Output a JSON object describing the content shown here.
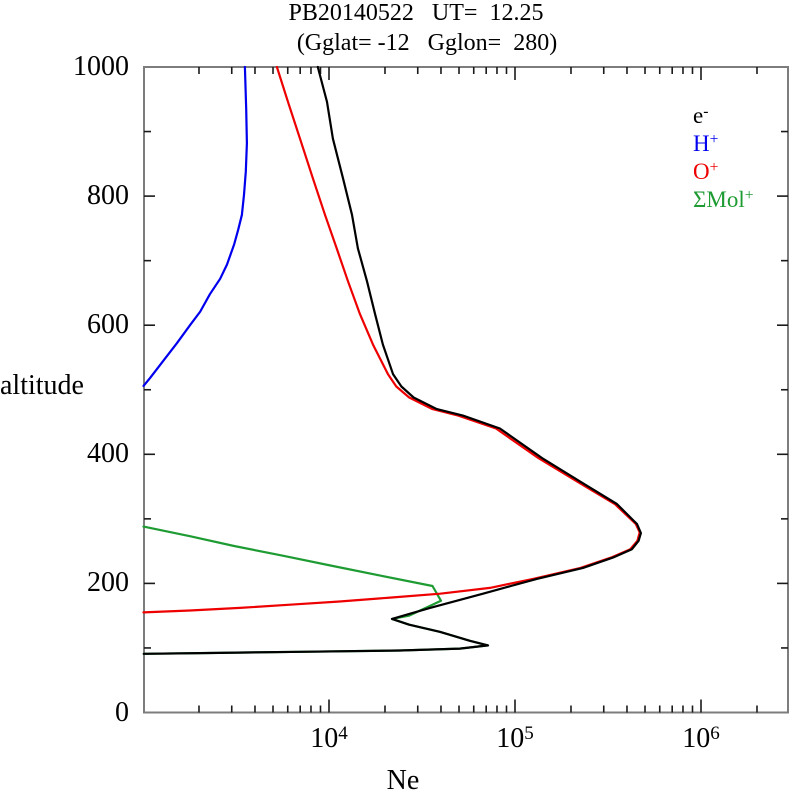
{
  "title": {
    "line1": "PB20140522   UT=  12.25",
    "line2": "(Gglat= -12   Gglon=  280)"
  },
  "axes": {
    "y_label": "altitude",
    "x_label": "Ne",
    "y_major_ticks": [
      {
        "value": 0,
        "label": "0"
      },
      {
        "value": 200,
        "label": "200"
      },
      {
        "value": 400,
        "label": "400"
      },
      {
        "value": 600,
        "label": "600"
      },
      {
        "value": 800,
        "label": "800"
      },
      {
        "value": 1000,
        "label": "1000"
      }
    ],
    "y_minor_ticks": [
      100,
      300,
      500,
      700,
      900
    ],
    "x_major_ticks": [
      {
        "value": 10000,
        "base": "10",
        "exp": "4"
      },
      {
        "value": 100000,
        "base": "10",
        "exp": "5"
      },
      {
        "value": 1000000,
        "base": "10",
        "exp": "6"
      }
    ],
    "x_minor_ticks": [
      2000,
      3000,
      4000,
      5000,
      6000,
      7000,
      8000,
      9000,
      20000,
      30000,
      40000,
      50000,
      60000,
      70000,
      80000,
      90000,
      200000,
      300000,
      400000,
      500000,
      600000,
      700000,
      800000,
      900000,
      2000000
    ]
  },
  "legend": [
    {
      "label": "e",
      "sup": "-",
      "color": "#000000"
    },
    {
      "label": "H",
      "sup": "+",
      "color": "#0000ee"
    },
    {
      "label": "O",
      "sup": "+",
      "color": "#ee0000"
    },
    {
      "label": "ΣMol",
      "sup": "+",
      "color": "#1e9b32"
    }
  ],
  "colors": {
    "frame": "#7d7d7d",
    "ticks": "#1a1a1a",
    "electron": "#000000",
    "h_plus": "#0000ee",
    "o_plus": "#ee0000",
    "mol_plus": "#1e9b32"
  },
  "chart_data": {
    "type": "line",
    "title": "PB20140522   UT=  12.25 (Gglat= -12  Gglon= 280)",
    "xlabel": "Ne",
    "ylabel": "altitude",
    "x_scale": "log",
    "xlim": [
      1000,
      2940000
    ],
    "ylim": [
      0,
      1000
    ],
    "grid": false,
    "legend_position": "upper-right-inside",
    "series": [
      {
        "name": "H+",
        "color": "#0000ee",
        "points_ne_alt": [
          [
            3530,
            1000
          ],
          [
            3590,
            935
          ],
          [
            3620,
            882
          ],
          [
            3570,
            838
          ],
          [
            3490,
            802
          ],
          [
            3400,
            771
          ],
          [
            3250,
            748
          ],
          [
            3090,
            725
          ],
          [
            2830,
            694
          ],
          [
            2600,
            672
          ],
          [
            2290,
            648
          ],
          [
            2030,
            621
          ],
          [
            1790,
            600
          ],
          [
            1520,
            572
          ],
          [
            1280,
            544
          ],
          [
            1090,
            518
          ],
          [
            1000,
            506
          ]
        ]
      },
      {
        "name": "ΣMol+",
        "color": "#1e9b32",
        "points_ne_alt": [
          [
            1000,
            288
          ],
          [
            1800,
            273
          ],
          [
            3090,
            258
          ],
          [
            5600,
            243
          ],
          [
            10500,
            227
          ],
          [
            19000,
            212
          ],
          [
            36000,
            196
          ],
          [
            40000,
            173
          ],
          [
            26900,
            150
          ],
          [
            21800,
            145
          ],
          [
            27000,
            136
          ],
          [
            39400,
            125
          ],
          [
            57200,
            111
          ],
          [
            71600,
            104
          ],
          [
            50500,
            99
          ],
          [
            24100,
            96
          ],
          [
            7000,
            94
          ],
          [
            2030,
            92
          ],
          [
            1010,
            91
          ]
        ]
      },
      {
        "name": "O+",
        "color": "#ee0000",
        "points_ne_alt": [
          [
            5250,
            1000
          ],
          [
            6020,
            946
          ],
          [
            6980,
            889
          ],
          [
            8200,
            827
          ],
          [
            9520,
            771
          ],
          [
            11000,
            719
          ],
          [
            12650,
            668
          ],
          [
            14680,
            617
          ],
          [
            17250,
            570
          ],
          [
            20750,
            524
          ],
          [
            23000,
            505
          ],
          [
            27000,
            488
          ],
          [
            36000,
            470
          ],
          [
            49500,
            460
          ],
          [
            79000,
            440
          ],
          [
            134000,
            394
          ],
          [
            224000,
            355
          ],
          [
            344000,
            323
          ],
          [
            446000,
            292
          ],
          [
            468000,
            279
          ],
          [
            455000,
            266
          ],
          [
            417000,
            253
          ],
          [
            328000,
            240
          ],
          [
            225000,
            224
          ],
          [
            125000,
            207
          ],
          [
            73300,
            193
          ],
          [
            39600,
            184
          ],
          [
            21300,
            178
          ],
          [
            11400,
            172
          ],
          [
            6170,
            167
          ],
          [
            3320,
            162
          ],
          [
            1790,
            158
          ],
          [
            1000,
            155
          ]
        ]
      },
      {
        "name": "e-",
        "color": "#000000",
        "points_ne_alt": [
          [
            8700,
            1000
          ],
          [
            9750,
            946
          ],
          [
            10500,
            889
          ],
          [
            11900,
            827
          ],
          [
            13300,
            771
          ],
          [
            14300,
            719
          ],
          [
            16000,
            668
          ],
          [
            17700,
            617
          ],
          [
            19500,
            570
          ],
          [
            22100,
            524
          ],
          [
            24500,
            505
          ],
          [
            28500,
            488
          ],
          [
            38000,
            470
          ],
          [
            52500,
            460
          ],
          [
            83000,
            440
          ],
          [
            140000,
            394
          ],
          [
            232000,
            355
          ],
          [
            353000,
            323
          ],
          [
            453000,
            292
          ],
          [
            475000,
            278
          ],
          [
            462000,
            266
          ],
          [
            425000,
            253
          ],
          [
            336000,
            240
          ],
          [
            232000,
            224
          ],
          [
            131000,
            207
          ],
          [
            95000,
            196
          ],
          [
            67300,
            184
          ],
          [
            34900,
            162
          ],
          [
            21800,
            145
          ],
          [
            27000,
            136
          ],
          [
            39400,
            125
          ],
          [
            57200,
            111
          ],
          [
            71600,
            104
          ],
          [
            50500,
            99
          ],
          [
            24100,
            96
          ],
          [
            7000,
            94
          ],
          [
            2030,
            92
          ],
          [
            1010,
            91
          ]
        ]
      }
    ],
    "annotations": {
      "f_peak": {
        "Ne": 475000,
        "altitude": 278
      },
      "e_peak": {
        "Ne": 71600,
        "altitude": 104
      },
      "valley": {
        "Ne": 21800,
        "altitude": 145
      }
    }
  }
}
